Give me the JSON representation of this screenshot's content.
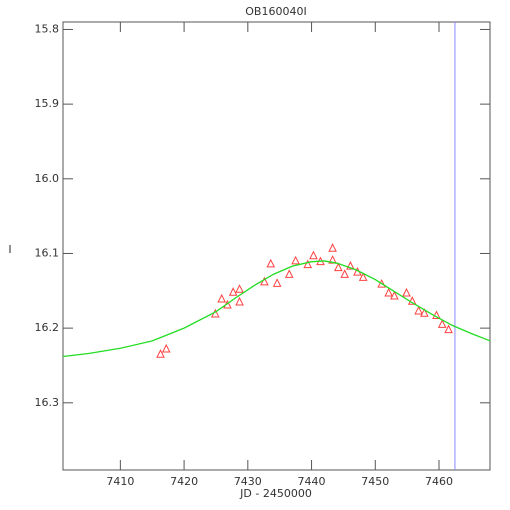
{
  "chart_data": {
    "type": "scatter",
    "title": "OB160040I",
    "xlabel": "JD - 2450000",
    "ylabel": "I",
    "xlim": [
      7401,
      7468
    ],
    "ylim": [
      16.39,
      15.79
    ],
    "xticks": [
      7410,
      7420,
      7430,
      7440,
      7450,
      7460
    ],
    "yticks": [
      15.8,
      15.9,
      {
        "value": 16,
        "label": "16.0"
      },
      16.1,
      16.2,
      16.3
    ],
    "series": [
      {
        "type": "scatter",
        "marker": "triangle",
        "color": "#ff4040",
        "x": [
          7416.3,
          7417.2,
          7424.9,
          7425.9,
          7426.8,
          7427.7,
          7428.7,
          7428.7,
          7432.6,
          7433.6,
          7434.6,
          7436.5,
          7437.5,
          7439.4,
          7440.3,
          7441.4,
          7443.3,
          7443.3,
          7444.2,
          7445.2,
          7446.1,
          7447.2,
          7448.1,
          7451.0,
          7452.1,
          7453.0,
          7454.9,
          7455.8,
          7456.8,
          7457.7,
          7459.6,
          7460.5,
          7461.5
        ],
        "values": [
          16.235,
          16.228,
          16.181,
          16.161,
          16.169,
          16.152,
          16.148,
          16.165,
          16.138,
          16.114,
          16.14,
          16.128,
          16.11,
          16.115,
          16.103,
          16.111,
          16.093,
          16.109,
          16.119,
          16.128,
          16.117,
          16.125,
          16.132,
          16.141,
          16.153,
          16.157,
          16.153,
          16.164,
          16.177,
          16.18,
          16.183,
          16.195,
          16.202
        ]
      },
      {
        "type": "line",
        "color": "#22dd22",
        "x": [
          7401,
          7405,
          7410,
          7415,
          7420,
          7425,
          7428,
          7431,
          7434,
          7437,
          7440,
          7442,
          7444,
          7447,
          7450,
          7453,
          7456,
          7459,
          7462,
          7465,
          7468
        ],
        "values": [
          16.238,
          16.234,
          16.227,
          16.217,
          16.2,
          16.178,
          16.16,
          16.143,
          16.128,
          16.117,
          16.111,
          16.11,
          16.113,
          16.122,
          16.135,
          16.151,
          16.167,
          16.182,
          16.196,
          16.207,
          16.217
        ]
      }
    ],
    "vline": {
      "x": 7462.5,
      "color": "#8888ff"
    }
  }
}
